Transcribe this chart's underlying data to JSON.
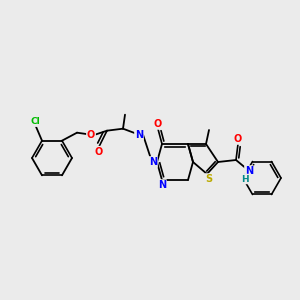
{
  "bg_color": "#ebebeb",
  "atom_colors": {
    "C": "#000000",
    "N": "#0000ff",
    "O": "#ff0000",
    "S": "#bbaa00",
    "Cl": "#00bb00",
    "H": "#008888"
  },
  "figsize": [
    3.0,
    3.0
  ],
  "dpi": 100
}
